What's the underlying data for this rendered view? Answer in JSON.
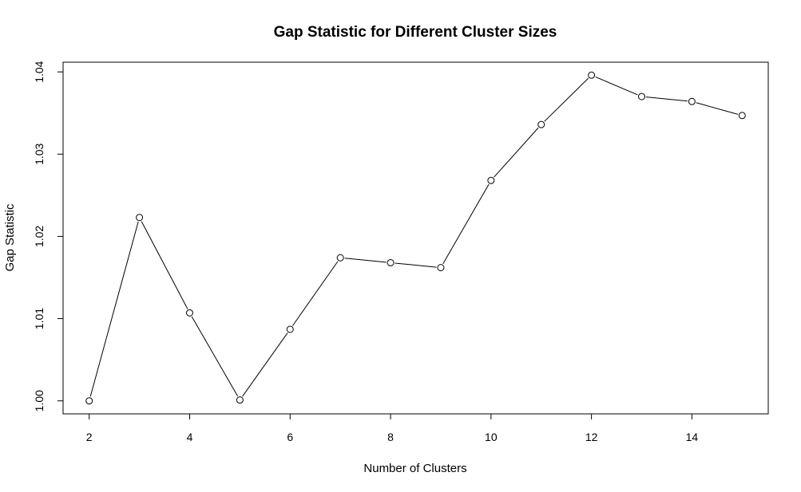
{
  "chart_data": {
    "type": "line",
    "title": "Gap Statistic for Different Cluster Sizes",
    "xlabel": "Number of Clusters",
    "ylabel": "Gap Statistic",
    "x": [
      2,
      3,
      4,
      5,
      6,
      7,
      8,
      9,
      10,
      11,
      12,
      13,
      14,
      15
    ],
    "y": [
      1.0,
      1.0223,
      1.0107,
      1.0001,
      1.0087,
      1.0174,
      1.0168,
      1.0162,
      1.0268,
      1.0336,
      1.0396,
      1.037,
      1.0364,
      1.0347
    ],
    "xlim": [
      1.48,
      15.52
    ],
    "ylim": [
      0.99842,
      1.04118
    ],
    "xticks": [
      2,
      4,
      6,
      8,
      10,
      12,
      14
    ],
    "xtick_labels": [
      "2",
      "4",
      "6",
      "8",
      "10",
      "12",
      "14"
    ],
    "yticks": [
      1.0,
      1.01,
      1.02,
      1.03,
      1.04
    ],
    "ytick_labels": [
      "1.00",
      "1.01",
      "1.02",
      "1.03",
      "1.04"
    ],
    "marker": "open-circle",
    "grid": false,
    "line_color": "#000000"
  }
}
